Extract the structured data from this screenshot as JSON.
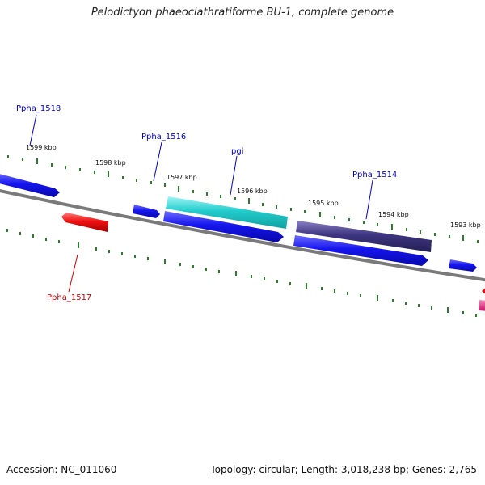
{
  "title": "Pelodictyon phaeoclathratiforme BU-1, complete genome",
  "footer": {
    "accession": "Accession: NC_011060",
    "summary": "Topology: circular; Length: 3,018,238 bp; Genes: 2,765"
  },
  "ticks": [
    {
      "label": "1599 kbp"
    },
    {
      "label": "1598 kbp"
    },
    {
      "label": "1597 kbp"
    },
    {
      "label": "1596 kbp"
    },
    {
      "label": "1595 kbp"
    },
    {
      "label": "1594 kbp"
    },
    {
      "label": "1593 kbp"
    }
  ],
  "gene_labels": [
    {
      "name": "Ppha_1518",
      "color": "#0000cc"
    },
    {
      "name": "Ppha_1516",
      "color": "#0000cc"
    },
    {
      "name": "pgi",
      "color": "#0000cc"
    },
    {
      "name": "Ppha_1514",
      "color": "#0000cc"
    },
    {
      "name": "Ppha_1517",
      "color": "#cc0000"
    }
  ],
  "colors": {
    "backbone": "#7a7a7a",
    "forward_gene": "#1a1aee",
    "reverse_gene": "#ee1111",
    "pgi_gene": "#22cccc",
    "ppha_1514_gene": "#3d3580",
    "tick": "#2e7d2e",
    "magenta_gene": "#e0207a"
  }
}
